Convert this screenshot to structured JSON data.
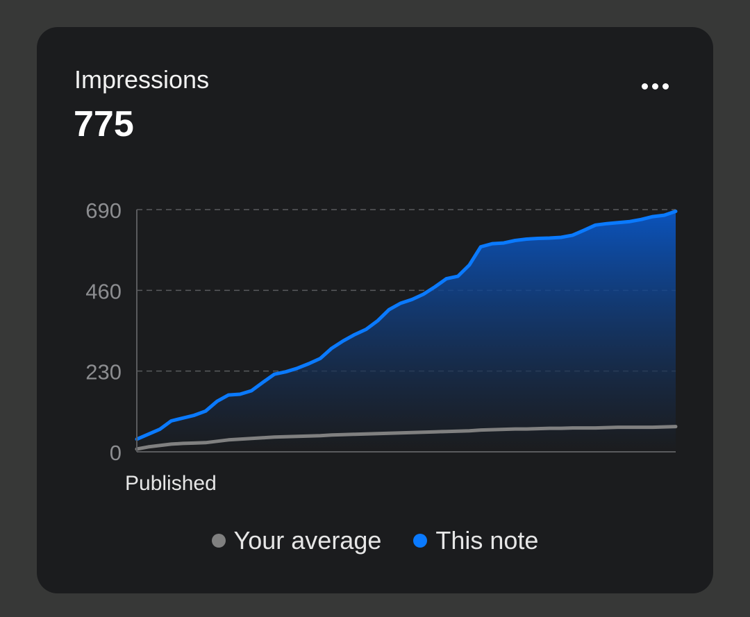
{
  "card": {
    "title": "Impressions",
    "value": "775",
    "menu_icon": "more-horizontal-icon"
  },
  "chart_data": {
    "type": "area",
    "title": "",
    "xlabel": "",
    "ylabel": "",
    "ylim": [
      0,
      690
    ],
    "yticks": [
      "690",
      "460",
      "230",
      "0"
    ],
    "ytick_values": [
      690,
      460,
      230,
      0
    ],
    "x_start_label": "Published",
    "grid": true,
    "legend_position": "bottom-center",
    "colors": {
      "this_note": "#0a7aff",
      "your_average": "#808080"
    },
    "series": [
      {
        "name": "This note",
        "key": "this_note",
        "values": [
          36,
          50,
          64,
          88,
          96,
          104,
          116,
          144,
          162,
          164,
          174,
          198,
          221,
          228,
          238,
          251,
          266,
          295,
          316,
          334,
          349,
          373,
          405,
          423,
          434,
          449,
          470,
          493,
          500,
          532,
          584,
          593,
          595,
          602,
          606,
          608,
          609,
          611,
          617,
          631,
          646,
          650,
          653,
          656,
          662,
          670,
          674,
          685
        ]
      },
      {
        "name": "Your average",
        "key": "your_average",
        "values": [
          8,
          14,
          18,
          22,
          24,
          25,
          26,
          30,
          34,
          36,
          38,
          40,
          42,
          43,
          44,
          45,
          46,
          48,
          49,
          50,
          51,
          52,
          53,
          54,
          55,
          56,
          57,
          58,
          59,
          60,
          62,
          63,
          64,
          65,
          65,
          66,
          67,
          67,
          68,
          68,
          68,
          69,
          70,
          70,
          70,
          70,
          71,
          72
        ]
      }
    ]
  },
  "legend": [
    {
      "label": "Your average",
      "color": "#808080"
    },
    {
      "label": "This note",
      "color": "#0a7aff"
    }
  ]
}
